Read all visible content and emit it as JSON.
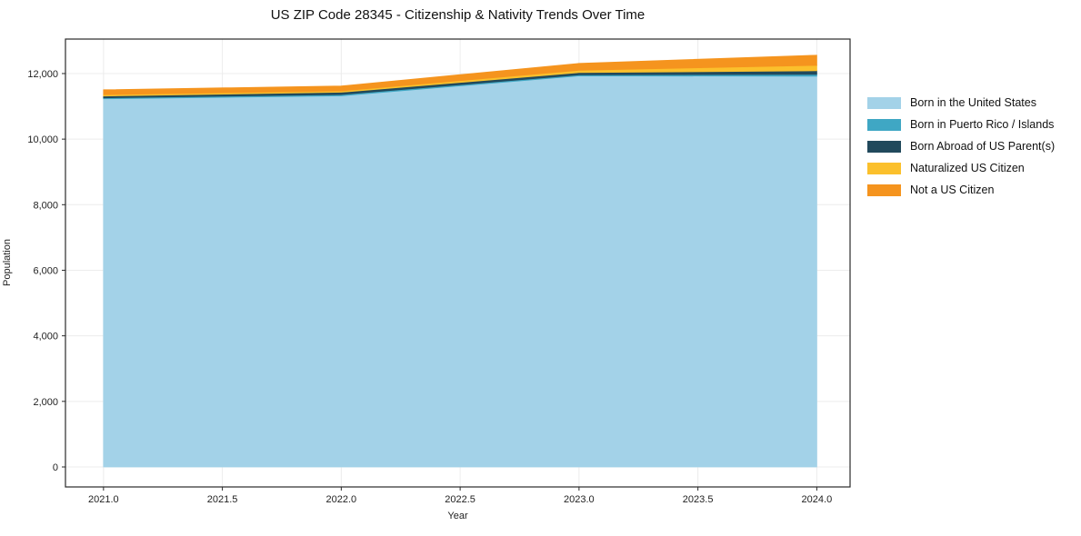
{
  "chart_data": {
    "type": "area",
    "stacked": true,
    "title": "US ZIP Code 28345 - Citizenship & Nativity Trends Over Time",
    "xlabel": "Year",
    "ylabel": "Population",
    "x": [
      2021,
      2022,
      2023,
      2024
    ],
    "xlim": [
      2020.84,
      2024.14
    ],
    "ylim": [
      -610,
      13052
    ],
    "grid": true,
    "legend_position": "right-outside",
    "xticks": {
      "values": [
        2021.0,
        2021.5,
        2022.0,
        2022.5,
        2023.0,
        2023.5,
        2024.0
      ],
      "labels": [
        "2021.0",
        "2021.5",
        "2022.0",
        "2022.5",
        "2023.0",
        "2023.5",
        "2024.0"
      ]
    },
    "yticks": {
      "values": [
        0,
        2000,
        4000,
        6000,
        8000,
        10000,
        12000
      ],
      "labels": [
        "0",
        "2,000",
        "4,000",
        "6,000",
        "8,000",
        "10,000",
        "12,000"
      ]
    },
    "series": [
      {
        "name": "Born in the United States",
        "color": "#A3D2E8",
        "values": [
          11230,
          11320,
          11930,
          11920
        ]
      },
      {
        "name": "Born in Puerto Rico / Islands",
        "color": "#3FA7C4",
        "values": [
          30,
          40,
          30,
          55
        ]
      },
      {
        "name": "Born Abroad of US Parent(s)",
        "color": "#21495C",
        "values": [
          55,
          70,
          70,
          110
        ]
      },
      {
        "name": "Naturalized US Citizen",
        "color": "#FBC02C",
        "values": [
          40,
          40,
          70,
          165
        ]
      },
      {
        "name": "Not a US Citizen",
        "color": "#F5941E",
        "values": [
          150,
          150,
          210,
          310
        ]
      }
    ],
    "totals": [
      11505,
      11620,
      12310,
      12560
    ],
    "colors": {
      "grid": "#ececec",
      "spine": "#2a2a2a",
      "tick_text": "#222222",
      "background": "#ffffff"
    }
  }
}
